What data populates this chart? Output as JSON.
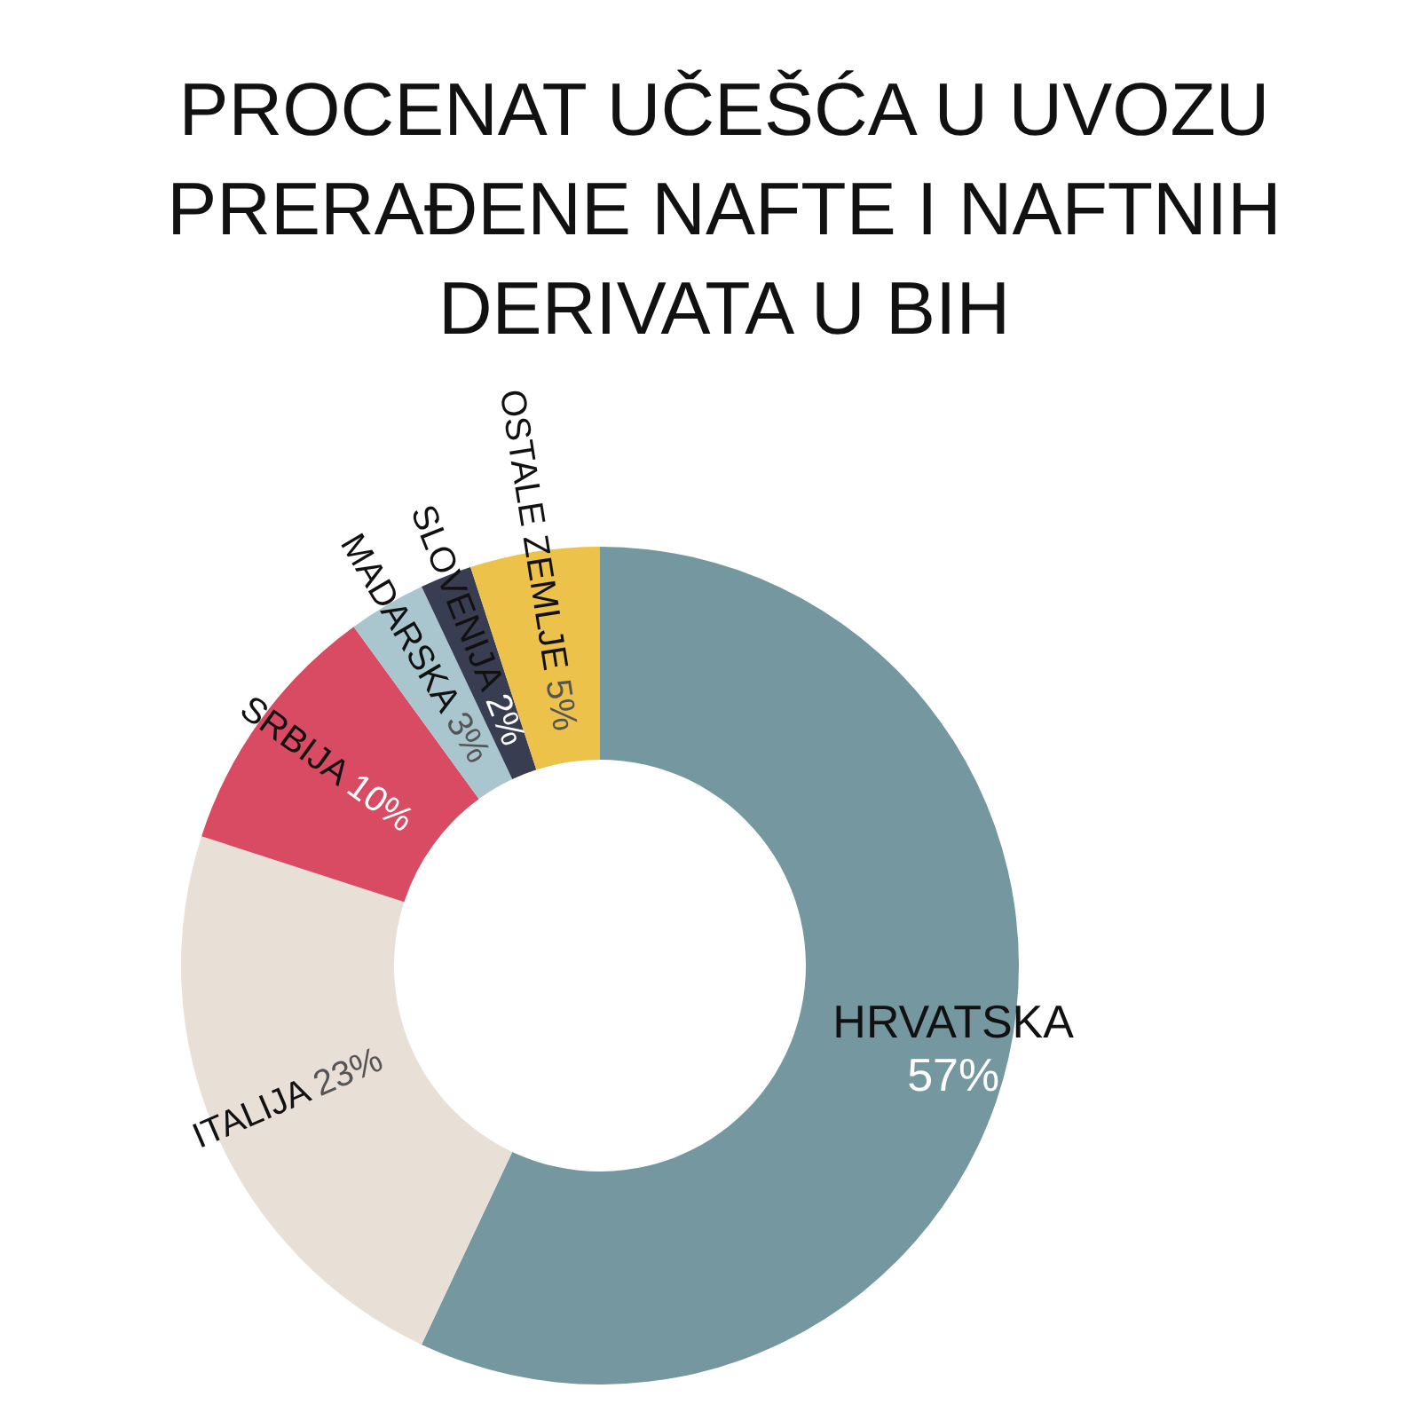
{
  "chart_data": {
    "type": "donut",
    "title": "PROCENAT UČEŠĆA U UVOZU\nPRERAĐENE NAFTE I NAFTNIH\nDERIVATA U BIH",
    "categories": [
      "HRVATSKA",
      "ITALIJA",
      "SRBIJA",
      "MADARSKA",
      "SLOVENIJA",
      "OSTALE ZEMLJE"
    ],
    "values": [
      57,
      23,
      10,
      3,
      2,
      5
    ],
    "value_labels": [
      "57%",
      "23%",
      "10%",
      "3%",
      "2%",
      "5%"
    ],
    "colors": [
      "#7497a0",
      "#e8dfd6",
      "#d94a63",
      "#a9c6cf",
      "#393d52",
      "#ecc24a"
    ]
  }
}
